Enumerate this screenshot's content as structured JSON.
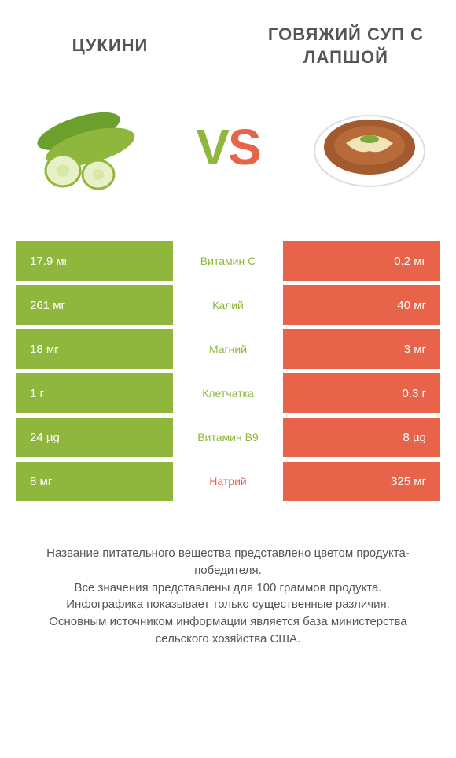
{
  "header": {
    "left_title": "ЦУКИНИ",
    "right_title": "ГОВЯЖИЙ СУП С ЛАПШОЙ"
  },
  "vs": {
    "v": "V",
    "s": "S"
  },
  "colors": {
    "green": "#8fb73e",
    "salmon": "#e7634a",
    "text": "#555555",
    "white": "#ffffff"
  },
  "rows": [
    {
      "left_value": "17.9 мг",
      "nutrient": "Витамин C",
      "right_value": "0.2 мг",
      "winner": "left"
    },
    {
      "left_value": "261 мг",
      "nutrient": "Калий",
      "right_value": "40 мг",
      "winner": "left"
    },
    {
      "left_value": "18 мг",
      "nutrient": "Магний",
      "right_value": "3 мг",
      "winner": "left"
    },
    {
      "left_value": "1 г",
      "nutrient": "Клетчатка",
      "right_value": "0.3 г",
      "winner": "left"
    },
    {
      "left_value": "24 µg",
      "nutrient": "Витамин B9",
      "right_value": "8 µg",
      "winner": "left"
    },
    {
      "left_value": "8 мг",
      "nutrient": "Натрий",
      "right_value": "325 мг",
      "winner": "right"
    }
  ],
  "footnote": "Название питательного вещества представлено цветом продукта-победителя.\nВсе значения представлены для 100 граммов продукта.\nИнфографика показывает только существенные различия.\nОсновным источником информации является база министерства сельского хозяйства США."
}
